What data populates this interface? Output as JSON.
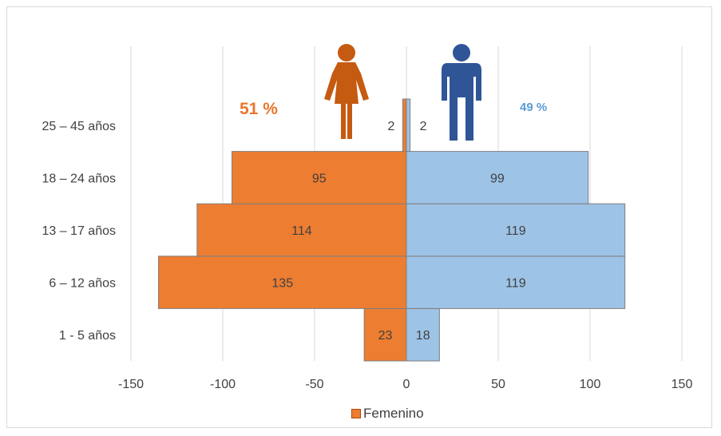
{
  "chart_data": {
    "type": "bar",
    "orientation": "horizontal",
    "layout": "population-pyramid",
    "categories": [
      "1 - 5 años",
      "6 – 12 años",
      "13 – 17 años",
      "18 – 24 años",
      "25 – 45 años"
    ],
    "series": [
      {
        "name": "Femenino",
        "values": [
          23,
          135,
          114,
          95,
          2
        ],
        "color": "#ed7d31"
      },
      {
        "values": [
          18,
          119,
          119,
          99,
          2
        ],
        "color": "#9dc3e6"
      }
    ],
    "data_labels": {
      "female": [
        "23",
        "135",
        "114",
        "95",
        "2"
      ],
      "male": [
        "18",
        "119",
        "119",
        "99",
        "2"
      ]
    },
    "xlim": [
      -150,
      150
    ],
    "x_ticks": [
      -150,
      -100,
      -50,
      0,
      50,
      100,
      150
    ],
    "x_tick_labels": [
      "-150",
      "-100",
      "-50",
      "0",
      "50",
      "100",
      "150"
    ],
    "grid": "vertical",
    "legend": {
      "position": "bottom",
      "entries": [
        "Femenino"
      ]
    },
    "annotations": {
      "female_percent": "51 %",
      "male_percent": "49 %"
    },
    "icons": {
      "female": {
        "name": "woman-icon",
        "color": "#c55a11"
      },
      "male": {
        "name": "man-icon",
        "color": "#2f5597"
      }
    }
  }
}
